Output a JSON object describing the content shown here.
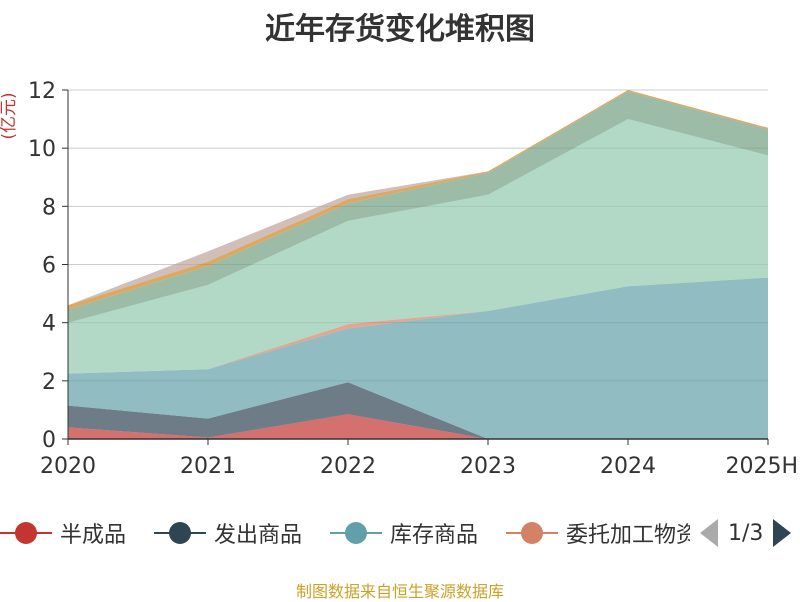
{
  "chart_data": {
    "type": "area",
    "stacked": true,
    "title": "近年存货变化堆积图",
    "ylabel": "(亿元)",
    "xlabel": "",
    "categories": [
      "2020",
      "2021",
      "2022",
      "2023",
      "2024",
      "2025H"
    ],
    "ylim": [
      0,
      12
    ],
    "yticks": [
      0,
      2,
      4,
      6,
      8,
      10,
      12
    ],
    "grid": true,
    "series": [
      {
        "name": "半成品",
        "color": "#c23531",
        "values": [
          0.4,
          0.05,
          0.85,
          0.0,
          0.0,
          0.0
        ]
      },
      {
        "name": "发出商品",
        "color": "#2f4554",
        "values": [
          0.75,
          0.65,
          1.1,
          0.0,
          0.0,
          0.0
        ]
      },
      {
        "name": "库存商品",
        "color": "#61a0a8",
        "values": [
          1.1,
          1.7,
          1.85,
          4.4,
          5.25,
          5.55
        ]
      },
      {
        "name": "委托加工物资",
        "color": "#d48265",
        "values": [
          0.0,
          0.0,
          0.15,
          0.0,
          0.0,
          0.0
        ]
      },
      {
        "name": "",
        "color": "#91c7ae",
        "values": [
          1.75,
          2.9,
          3.55,
          4.0,
          5.75,
          4.2
        ]
      },
      {
        "name": "",
        "color": "#749f83",
        "values": [
          0.45,
          0.65,
          0.6,
          0.75,
          0.95,
          0.9
        ]
      },
      {
        "name": "",
        "color": "#ca8622",
        "values": [
          0.15,
          0.15,
          0.15,
          0.05,
          0.05,
          0.05
        ]
      },
      {
        "name": "",
        "color": "#bda29a",
        "values": [
          0.0,
          0.35,
          0.15,
          0.0,
          0.0,
          0.0
        ]
      }
    ]
  },
  "legend": {
    "items": [
      "半成品",
      "发出商品",
      "库存商品",
      "委托加工物资"
    ],
    "page": "1/3"
  },
  "source": "制图数据来自恒生聚源数据库"
}
